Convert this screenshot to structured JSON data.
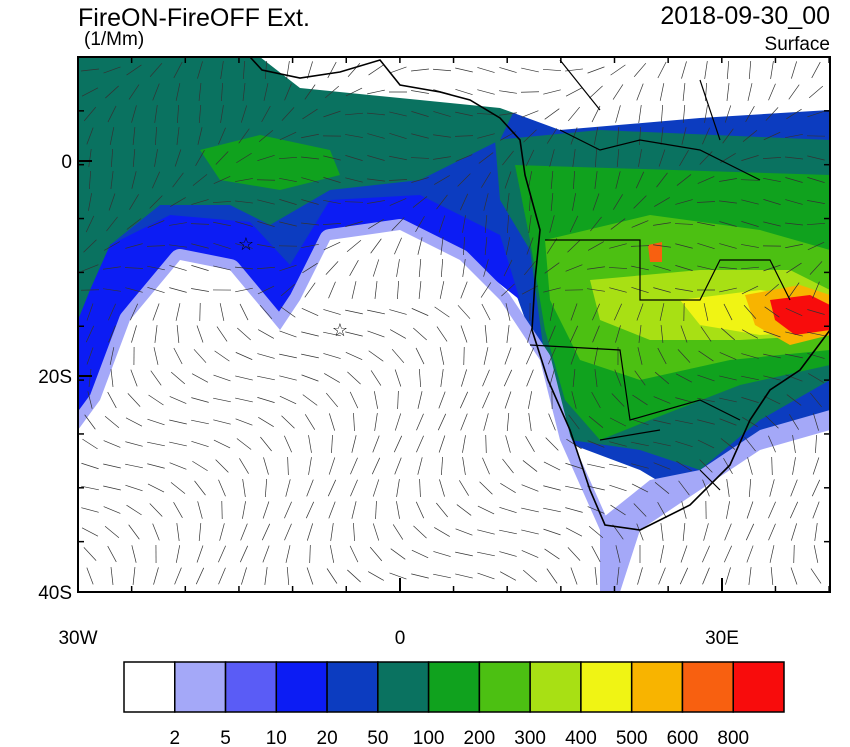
{
  "header": {
    "title": "FireON-FireOFF Ext.",
    "units": "(1/Mm)",
    "date": "2018-09-30_00",
    "level": "Surface"
  },
  "map": {
    "lat_labels": [
      "0",
      "20S",
      "40S"
    ],
    "lon_labels": [
      "30W",
      "0",
      "30E"
    ]
  },
  "colorbar": {
    "colors": [
      "#ffffff",
      "#a4a8f8",
      "#5a5cf6",
      "#0c1cf4",
      "#0c3cc0",
      "#0a7260",
      "#10a21e",
      "#4cc012",
      "#a8e014",
      "#f0f414",
      "#f8b400",
      "#f86010",
      "#f80c0c"
    ],
    "labels": [
      "2",
      "5",
      "10",
      "20",
      "50",
      "100",
      "200",
      "300",
      "400",
      "500",
      "600",
      "800"
    ]
  }
}
